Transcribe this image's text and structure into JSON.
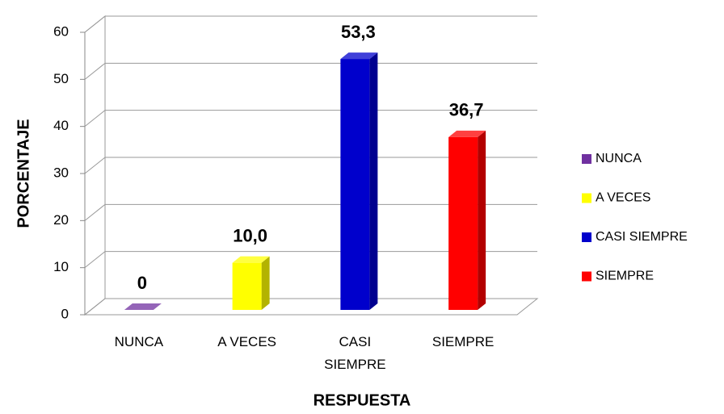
{
  "chart_data": {
    "type": "bar",
    "x_label": "RESPUESTA",
    "y_label": "PORCENTAJE",
    "categories": [
      "NUNCA",
      "A VECES",
      "CASI SIEMPRE",
      "SIEMPRE"
    ],
    "values": [
      0,
      10.0,
      53.3,
      36.7
    ],
    "value_labels": [
      "0",
      "10,0",
      "53,3",
      "36,7"
    ],
    "colors": [
      "#7030a0",
      "#ffff00",
      "#0000cc",
      "#ff0000"
    ],
    "ylim": [
      0,
      60
    ],
    "yticks": [
      0,
      10,
      20,
      30,
      40,
      50,
      60
    ],
    "grid": true,
    "legend": "right"
  }
}
